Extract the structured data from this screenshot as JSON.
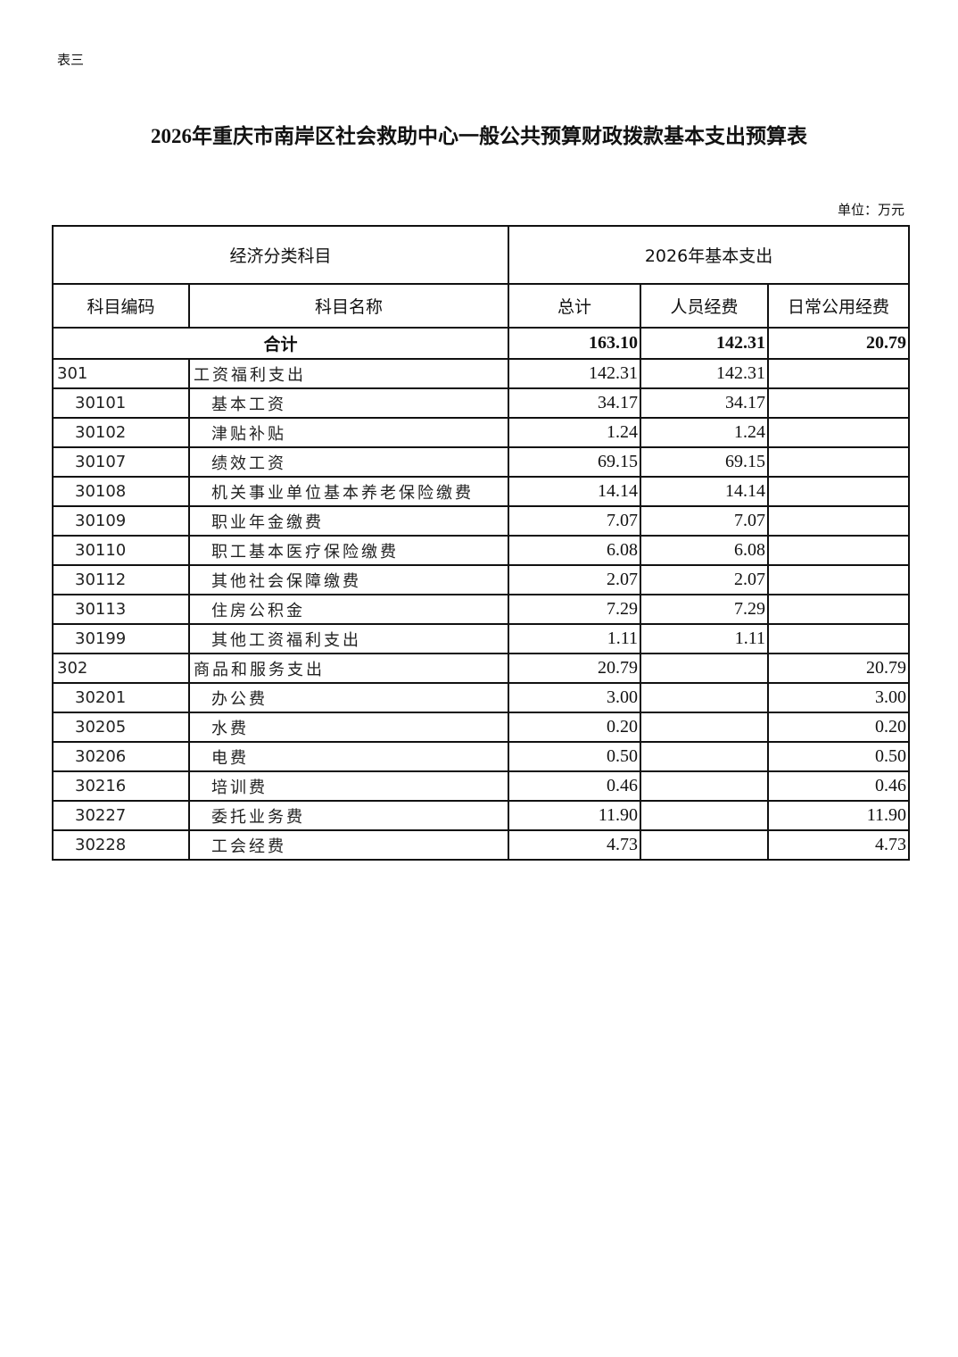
{
  "doc": {
    "label": "表三",
    "title": "2026年重庆市南岸区社会救助中心一般公共预算财政拨款基本支出预算表",
    "unit": "单位：万元"
  },
  "table": {
    "group_headers": [
      "经济分类科目",
      "2026年基本支出"
    ],
    "headers": [
      "科目编码",
      "科目名称",
      "总计",
      "人员经费",
      "日常公用经费"
    ],
    "total": {
      "label": "合计",
      "total": "163.10",
      "personnel": "142.31",
      "public": "20.79"
    },
    "rows": [
      {
        "code": "301",
        "name": "工资福利支出",
        "total": "142.31",
        "personnel": "142.31",
        "public": "",
        "level": 1
      },
      {
        "code": "30101",
        "name": "基本工资",
        "total": "34.17",
        "personnel": "34.17",
        "public": "",
        "level": 2
      },
      {
        "code": "30102",
        "name": "津贴补贴",
        "total": "1.24",
        "personnel": "1.24",
        "public": "",
        "level": 2
      },
      {
        "code": "30107",
        "name": "绩效工资",
        "total": "69.15",
        "personnel": "69.15",
        "public": "",
        "level": 2
      },
      {
        "code": "30108",
        "name": "机关事业单位基本养老保险缴费",
        "total": "14.14",
        "personnel": "14.14",
        "public": "",
        "level": 2
      },
      {
        "code": "30109",
        "name": "职业年金缴费",
        "total": "7.07",
        "personnel": "7.07",
        "public": "",
        "level": 2
      },
      {
        "code": "30110",
        "name": "职工基本医疗保险缴费",
        "total": "6.08",
        "personnel": "6.08",
        "public": "",
        "level": 2
      },
      {
        "code": "30112",
        "name": "其他社会保障缴费",
        "total": "2.07",
        "personnel": "2.07",
        "public": "",
        "level": 2
      },
      {
        "code": "30113",
        "name": "住房公积金",
        "total": "7.29",
        "personnel": "7.29",
        "public": "",
        "level": 2
      },
      {
        "code": "30199",
        "name": "其他工资福利支出",
        "total": "1.11",
        "personnel": "1.11",
        "public": "",
        "level": 2
      },
      {
        "code": "302",
        "name": "商品和服务支出",
        "total": "20.79",
        "personnel": "",
        "public": "20.79",
        "level": 1
      },
      {
        "code": "30201",
        "name": "办公费",
        "total": "3.00",
        "personnel": "",
        "public": "3.00",
        "level": 2
      },
      {
        "code": "30205",
        "name": "水费",
        "total": "0.20",
        "personnel": "",
        "public": "0.20",
        "level": 2
      },
      {
        "code": "30206",
        "name": "电费",
        "total": "0.50",
        "personnel": "",
        "public": "0.50",
        "level": 2
      },
      {
        "code": "30216",
        "name": "培训费",
        "total": "0.46",
        "personnel": "",
        "public": "0.46",
        "level": 2
      },
      {
        "code": "30227",
        "name": "委托业务费",
        "total": "11.90",
        "personnel": "",
        "public": "11.90",
        "level": 2
      },
      {
        "code": "30228",
        "name": "工会经费",
        "total": "4.73",
        "personnel": "",
        "public": "4.73",
        "level": 2
      }
    ]
  }
}
